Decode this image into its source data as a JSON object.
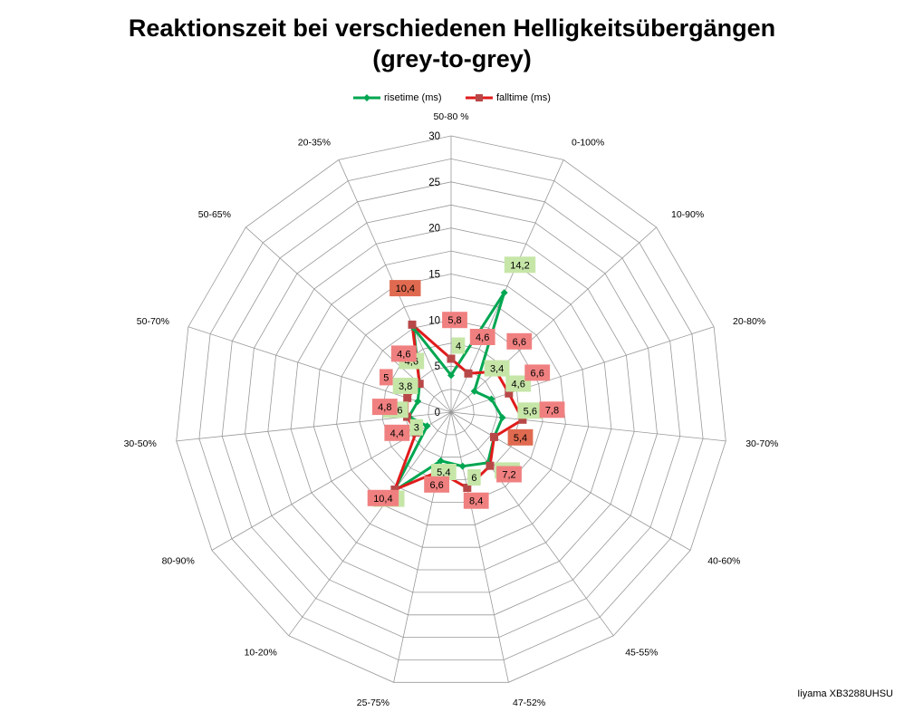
{
  "title_line1": "Reaktionszeit bei verschiedenen Helligkeitsübergängen",
  "title_line2": "(grey-to-grey)",
  "footer": "Iiyama XB3288UHSU",
  "colors": {
    "risetime": "#00a651",
    "falltime": "#e01b1b",
    "rise_label_bg": "#c6e6a8",
    "fall_label_bg": "#f08080",
    "fall_label_bg_dark": "#e06a50",
    "grid": "#999999"
  },
  "chart_data": {
    "type": "radar",
    "categories": [
      "50-80 %",
      "0-100%",
      "10-90%",
      "20-80%",
      "30-70%",
      "40-60%",
      "45-55%",
      "47-52%",
      "25-75%",
      "10-20%",
      "80-90%",
      "30-50%",
      "50-70%",
      "50-65%",
      "20-35%"
    ],
    "series": [
      {
        "name": "risetime (ms)",
        "values": [
          4,
          14.2,
          3.4,
          4.6,
          5.6,
          5.4,
          6.8,
          6,
          5.4,
          10.6,
          3,
          4.6,
          3.8,
          4.6,
          10
        ]
      },
      {
        "name": "falltime (ms)",
        "values": [
          5.8,
          4.6,
          6.6,
          6.6,
          7.8,
          5.4,
          7.2,
          8.4,
          6.6,
          10.4,
          4.4,
          4.8,
          5,
          4.6,
          10.4
        ]
      }
    ],
    "rise_labels": [
      "4",
      "14,2",
      "3,4",
      "4,6",
      "5,6",
      "",
      "6,8",
      "6",
      "5,4",
      "10,6",
      "3",
      "4,6",
      "3,8",
      "4,6",
      ""
    ],
    "fall_labels": [
      "5,8",
      "4,6",
      "6,6",
      "6,6",
      "7,8",
      "5,4",
      "7,2",
      "8,4",
      "6,6",
      "10,4",
      "4,4",
      "4,8",
      "5",
      "4,6",
      "10,4"
    ],
    "ticks": [
      "0",
      "5",
      "10",
      "15",
      "20",
      "25",
      "30"
    ],
    "rmax": 30,
    "grid": true,
    "legend_position": "top"
  }
}
